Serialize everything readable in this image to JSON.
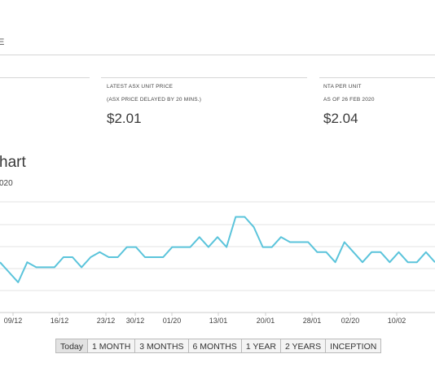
{
  "header": {
    "tab_fragment": "E"
  },
  "price_cards": [
    {
      "title": "LATEST ASX UNIT PRICE",
      "subtitle": "(ASX PRICE DELAYED BY 20 MINS.)",
      "value": "$2.01"
    },
    {
      "title": "NTA PER UNIT",
      "subtitle": "AS OF 26 FEB 2020",
      "value": "$2.04"
    }
  ],
  "chart_section": {
    "title": "hart",
    "subtitle": "020"
  },
  "chart_data": {
    "type": "line",
    "x_tick_labels": [
      "09/12",
      "16/12",
      "23/12",
      "30/12",
      "01/20",
      "13/01",
      "20/01",
      "28/01",
      "02/20",
      "10/02"
    ],
    "series": [
      {
        "values": [
          2.0,
          1.99,
          1.98,
          2.0,
          1.995,
          1.995,
          1.995,
          2.005,
          2.005,
          1.995,
          2.005,
          2.01,
          2.005,
          2.005,
          2.015,
          2.015,
          2.005,
          2.005,
          2.005,
          2.015,
          2.015,
          2.015,
          2.025,
          2.015,
          2.025,
          2.015,
          2.045,
          2.045,
          2.035,
          2.015,
          2.015,
          2.025,
          2.02,
          2.02,
          2.02,
          2.01,
          2.01,
          2.0,
          2.02,
          2.01,
          2.0,
          2.01,
          2.01,
          2.0,
          2.01,
          2.0,
          2.0,
          2.01,
          2.0
        ]
      }
    ],
    "ylim": [
      1.95,
      2.06
    ],
    "grid": true,
    "line_color": "#5bc4db"
  },
  "range_buttons": [
    "Today",
    "1 MONTH",
    "3 MONTHS",
    "6 MONTHS",
    "1 YEAR",
    "2 YEARS",
    "INCEPTION"
  ],
  "active_range": "Today"
}
